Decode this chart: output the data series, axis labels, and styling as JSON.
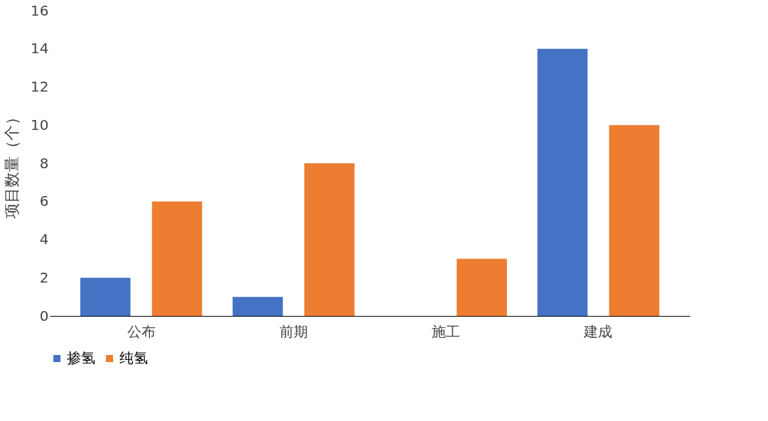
{
  "chart_data": {
    "type": "bar",
    "ylabel": "项目数量（个）",
    "categories": [
      "公布",
      "前期",
      "施工",
      "建成"
    ],
    "series": [
      {
        "name": "掺氢",
        "color": "#4472c4",
        "values": [
          2,
          1,
          0,
          14
        ]
      },
      {
        "name": "纯氢",
        "color": "#ed7d31",
        "values": [
          6,
          8,
          3,
          10
        ]
      }
    ],
    "ylim": [
      0,
      16
    ],
    "yticks": [
      0,
      2,
      4,
      6,
      8,
      10,
      12,
      14,
      16
    ],
    "grid": false,
    "legend": "bottom"
  }
}
